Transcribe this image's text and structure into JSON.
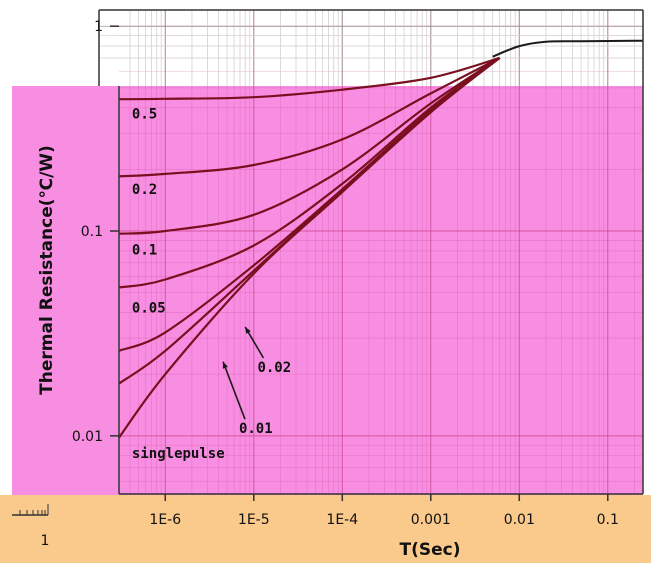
{
  "chart_data": {
    "type": "line",
    "title": "",
    "xlabel": "T(Sec)",
    "ylabel": "Thermal Resistance(℃/W)",
    "xscale": "log",
    "yscale": "log",
    "xlim": [
      3e-07,
      0.25
    ],
    "ylim": [
      0.0052,
      1.2
    ],
    "grid": true,
    "background_color": "#f88ee2",
    "upper_band_color": "#ffffff",
    "bottom_band_color": "#fac98c",
    "curve_color": "#7a0f1f",
    "top_curve_color": "#1a1a1a",
    "x_ticks": [
      {
        "value": 1e-06,
        "label": "1E-6"
      },
      {
        "value": 1e-05,
        "label": "1E-5"
      },
      {
        "value": 0.0001,
        "label": "1E-4"
      },
      {
        "value": 0.001,
        "label": "0.001"
      },
      {
        "value": 0.01,
        "label": "0.01"
      },
      {
        "value": 0.1,
        "label": "0.1"
      }
    ],
    "y_ticks": [
      {
        "value": 1,
        "label": "1"
      },
      {
        "value": 0.1,
        "label": "0.1"
      },
      {
        "value": 0.01,
        "label": "0.01"
      }
    ],
    "extra_labels": [
      {
        "label": "1",
        "note": "lower-left corner, below axis"
      }
    ],
    "series": [
      {
        "name": "0.5",
        "label_at": [
          4.2e-07,
          0.355
        ],
        "points": [
          [
            3e-07,
            0.44
          ],
          [
            1e-06,
            0.442
          ],
          [
            1e-05,
            0.45
          ],
          [
            0.0001,
            0.49
          ],
          [
            0.001,
            0.56
          ],
          [
            0.006,
            0.7
          ]
        ]
      },
      {
        "name": "0.2",
        "label_at": [
          4.2e-07,
          0.152
        ],
        "points": [
          [
            3e-07,
            0.185
          ],
          [
            1e-06,
            0.19
          ],
          [
            1e-05,
            0.21
          ],
          [
            0.0001,
            0.28
          ],
          [
            0.001,
            0.47
          ],
          [
            0.006,
            0.7
          ]
        ]
      },
      {
        "name": "0.1",
        "label_at": [
          4.2e-07,
          0.077
        ],
        "points": [
          [
            3e-07,
            0.097
          ],
          [
            1e-06,
            0.1
          ],
          [
            1e-05,
            0.12
          ],
          [
            0.0001,
            0.2
          ],
          [
            0.001,
            0.42
          ],
          [
            0.006,
            0.7
          ]
        ]
      },
      {
        "name": "0.05",
        "label_at": [
          4.2e-07,
          0.04
        ],
        "points": [
          [
            3e-07,
            0.053
          ],
          [
            1e-06,
            0.058
          ],
          [
            1e-05,
            0.085
          ],
          [
            0.0001,
            0.17
          ],
          [
            0.001,
            0.4
          ],
          [
            0.006,
            0.7
          ]
        ]
      },
      {
        "name": "0.02",
        "label_at": [
          1.1e-05,
          0.0205
        ],
        "arrow_to": [
          8e-06,
          0.034
        ],
        "points": [
          [
            3e-07,
            0.026
          ],
          [
            1e-06,
            0.032
          ],
          [
            1e-05,
            0.068
          ],
          [
            0.0001,
            0.16
          ],
          [
            0.001,
            0.39
          ],
          [
            0.006,
            0.7
          ]
        ]
      },
      {
        "name": "0.01",
        "label_at": [
          6.8e-06,
          0.0103
        ],
        "arrow_to": [
          4.5e-06,
          0.023
        ],
        "points": [
          [
            3e-07,
            0.018
          ],
          [
            1e-06,
            0.026
          ],
          [
            1e-05,
            0.064
          ],
          [
            0.0001,
            0.158
          ],
          [
            0.001,
            0.385
          ],
          [
            0.006,
            0.7
          ]
        ]
      },
      {
        "name": "singlepulse",
        "label_at": [
          4.2e-07,
          0.0078
        ],
        "points": [
          [
            3e-07,
            0.0098
          ],
          [
            1e-06,
            0.02
          ],
          [
            1e-05,
            0.062
          ],
          [
            0.0001,
            0.155
          ],
          [
            0.001,
            0.38
          ],
          [
            0.006,
            0.7
          ]
        ]
      }
    ],
    "top_curve": {
      "points": [
        [
          0.005,
          0.71
        ],
        [
          0.01,
          0.8
        ],
        [
          0.02,
          0.84
        ],
        [
          0.05,
          0.845
        ],
        [
          0.25,
          0.85
        ]
      ]
    }
  }
}
